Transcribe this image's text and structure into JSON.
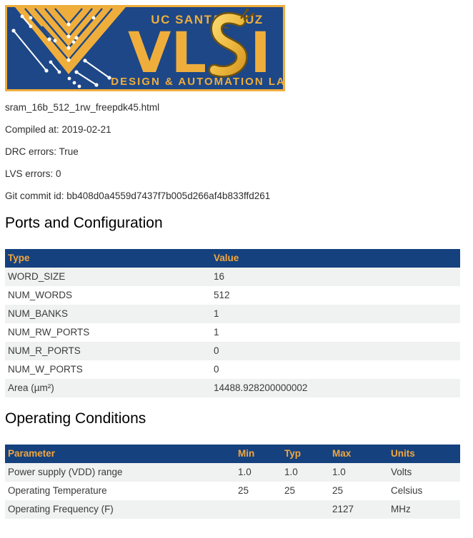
{
  "logo": {
    "top_text": "UC SANTA CRUZ",
    "acronym": "VLSI",
    "bottom_text": "DESIGN & AUTOMATION LAB",
    "colors": {
      "navy": "#1D4787",
      "gold": "#EFAE3C"
    }
  },
  "info": {
    "filename": "sram_16b_512_1rw_freepdk45.html",
    "compiled_at": "Compiled at: 2019-02-21",
    "drc_errors": "DRC errors: True",
    "lvs_errors": "LVS errors: 0",
    "git_commit": "Git commit id: bb408d0a4559d7437f7b005d266af4b833ffd261"
  },
  "sections": {
    "ports_title": "Ports and Configuration",
    "operating_title": "Operating Conditions"
  },
  "ports_table": {
    "columns": [
      "Type",
      "Value"
    ],
    "rows": [
      [
        "WORD_SIZE",
        "16"
      ],
      [
        "NUM_WORDS",
        "512"
      ],
      [
        "NUM_BANKS",
        "1"
      ],
      [
        "NUM_RW_PORTS",
        "1"
      ],
      [
        "NUM_R_PORTS",
        "0"
      ],
      [
        "NUM_W_PORTS",
        "0"
      ],
      [
        "Area (µm²)",
        "14488.928200000002"
      ]
    ]
  },
  "operating_table": {
    "columns": [
      "Parameter",
      "Min",
      "Typ",
      "Max",
      "Units"
    ],
    "rows": [
      [
        "Power supply (VDD) range",
        "1.0",
        "1.0",
        "1.0",
        "Volts"
      ],
      [
        "Operating Temperature",
        "25",
        "25",
        "25",
        "Celsius"
      ],
      [
        "Operating Frequency (F)",
        "",
        "",
        "2127",
        "MHz"
      ]
    ]
  },
  "colors": {
    "table_header_bg": "#15417E",
    "table_header_text": "#F2A73D",
    "row_alt_bg": "#F0F1F1",
    "navy": "#1D4787",
    "gold": "#EFAE3C"
  }
}
